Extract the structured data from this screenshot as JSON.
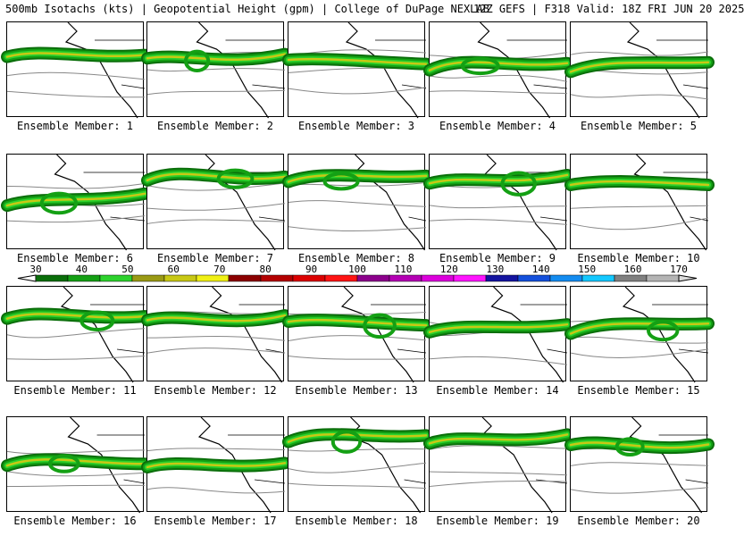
{
  "header": {
    "left": "500mb Isotachs (kts) | Geopotential Height (gpm) | College of DuPage NEXLAB",
    "right": "12Z GEFS | F318 Valid: 18Z FRI JUN 20 2025"
  },
  "colorbar": {
    "labels": [
      "30",
      "40",
      "50",
      "60",
      "70",
      "80",
      "90",
      "100",
      "110",
      "120",
      "130",
      "140",
      "150",
      "160",
      "170"
    ],
    "colors": [
      "#0a6e0a",
      "#14a014",
      "#2dd22d",
      "#9a9a14",
      "#c8c814",
      "#f0f014",
      "#8c0000",
      "#b40000",
      "#dc0000",
      "#ff1414",
      "#8c008c",
      "#b400b4",
      "#dc00dc",
      "#ff14ff",
      "#1414a0",
      "#1450dc",
      "#148cf0",
      "#14c8ff",
      "#808080",
      "#b4b4b4"
    ]
  },
  "members": [
    "Ensemble Member: 1",
    "Ensemble Member: 2",
    "Ensemble Member: 3",
    "Ensemble Member: 4",
    "Ensemble Member: 5",
    "Ensemble Member: 6",
    "Ensemble Member: 7",
    "Ensemble Member: 8",
    "Ensemble Member: 9",
    "Ensemble Member: 10",
    "Ensemble Member: 11",
    "Ensemble Member: 12",
    "Ensemble Member: 13",
    "Ensemble Member: 14",
    "Ensemble Member: 15",
    "Ensemble Member: 16",
    "Ensemble Member: 17",
    "Ensemble Member: 18",
    "Ensemble Member: 19",
    "Ensemble Member: 20"
  ]
}
